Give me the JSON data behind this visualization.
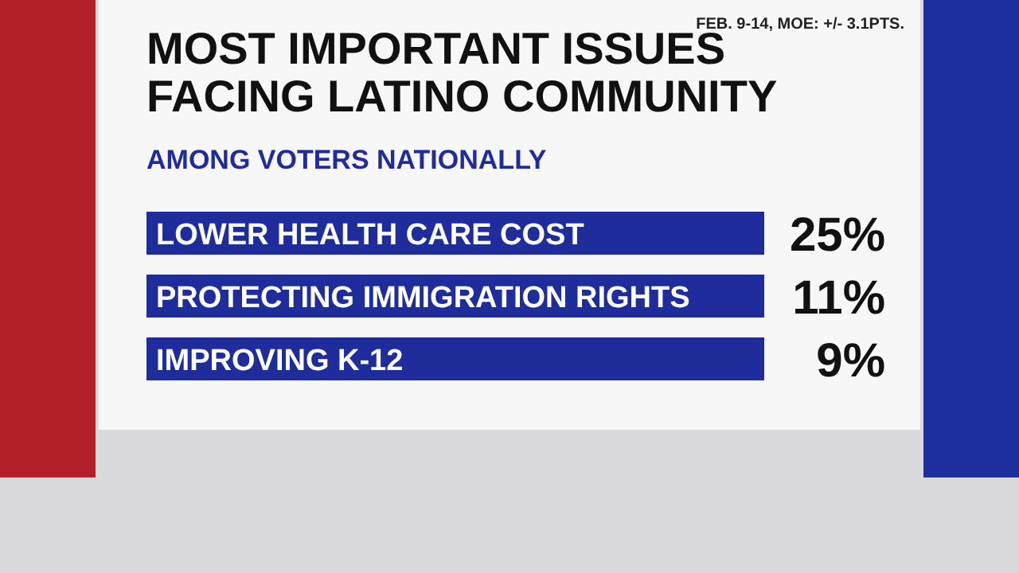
{
  "chart_data": {
    "type": "other",
    "title": "MOST IMPORTANT ISSUES FACING LATINO COMMUNITY",
    "subtitle": "AMONG VOTERS NATIONALLY",
    "annotations": [
      "FEB. 9-14, MOE: +/- 3.1PTS."
    ],
    "categories": [
      "LOWER HEALTH CARE COST",
      "PROTECTING IMMIGRATION RIGHTS",
      "IMPROVING K-12"
    ],
    "values": [
      25,
      11,
      9
    ],
    "value_labels": [
      "25%",
      "11%",
      "9%"
    ],
    "color": "#1f2d9c"
  }
}
